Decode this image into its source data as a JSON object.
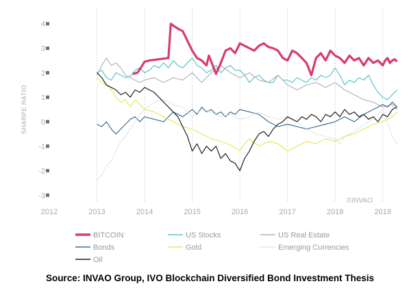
{
  "chart_data": {
    "type": "line",
    "ylabel": "SHARPE RATIO",
    "xlim": [
      2012,
      2019.35
    ],
    "ylim": [
      -3.3,
      4.3
    ],
    "x_ticks": [
      "2012",
      "2013",
      "2014",
      "2015",
      "2016",
      "2017",
      "2018",
      "2019"
    ],
    "y_ticks": [
      "4",
      "3",
      "2",
      "1",
      "0",
      "-1",
      "-2",
      "-3"
    ],
    "grid": "vertical dotted at years",
    "legend_position": "bottom",
    "watermark": "©INVAO",
    "series": [
      {
        "name": "BITCOIN",
        "color": "#d63c6e",
        "style": "solid-thick",
        "x": [
          2013.75,
          2013.85,
          2013.92,
          2014.0,
          2014.1,
          2014.3,
          2014.5,
          2014.55,
          2014.62,
          2014.7,
          2014.8,
          2014.9,
          2015.0,
          2015.1,
          2015.2,
          2015.3,
          2015.35,
          2015.45,
          2015.5,
          2015.6,
          2015.7,
          2015.8,
          2015.9,
          2016.0,
          2016.1,
          2016.2,
          2016.3,
          2016.4,
          2016.5,
          2016.6,
          2016.7,
          2016.8,
          2016.9,
          2017.0,
          2017.1,
          2017.2,
          2017.3,
          2017.4,
          2017.5,
          2017.6,
          2017.7,
          2017.8,
          2017.9,
          2018.0,
          2018.1,
          2018.2,
          2018.3,
          2018.4,
          2018.5,
          2018.6,
          2018.7,
          2018.8,
          2018.9,
          2019.0,
          2019.05,
          2019.1,
          2019.15,
          2019.2,
          2019.25,
          2019.3
        ],
        "y": [
          1.95,
          2.0,
          2.2,
          2.45,
          2.5,
          2.55,
          2.6,
          4.0,
          3.9,
          3.8,
          3.7,
          3.3,
          2.9,
          2.6,
          2.5,
          2.3,
          2.7,
          2.2,
          1.95,
          2.4,
          2.9,
          3.0,
          2.8,
          3.2,
          3.1,
          3.0,
          2.9,
          3.1,
          3.2,
          3.05,
          3.0,
          2.9,
          2.6,
          2.5,
          2.9,
          2.8,
          2.6,
          2.4,
          1.9,
          2.6,
          2.8,
          2.5,
          2.9,
          2.7,
          2.6,
          2.4,
          2.7,
          2.5,
          2.6,
          2.3,
          2.6,
          2.4,
          2.5,
          2.3,
          2.5,
          2.6,
          2.4,
          2.5,
          2.55,
          2.45
        ]
      },
      {
        "name": "US Stocks",
        "color": "#5bc0d0",
        "style": "solid",
        "x": [
          2013.0,
          2013.1,
          2013.2,
          2013.3,
          2013.4,
          2013.5,
          2013.6,
          2013.7,
          2013.8,
          2013.9,
          2014.0,
          2014.1,
          2014.2,
          2014.3,
          2014.4,
          2014.5,
          2014.6,
          2014.7,
          2014.8,
          2014.9,
          2015.0,
          2015.1,
          2015.2,
          2015.3,
          2015.4,
          2015.5,
          2015.6,
          2015.7,
          2015.8,
          2015.9,
          2016.0,
          2016.1,
          2016.2,
          2016.3,
          2016.4,
          2016.5,
          2016.6,
          2016.7,
          2016.8,
          2016.9,
          2017.0,
          2017.1,
          2017.2,
          2017.3,
          2017.4,
          2017.5,
          2017.6,
          2017.7,
          2017.8,
          2017.9,
          2018.0,
          2018.1,
          2018.2,
          2018.3,
          2018.4,
          2018.5,
          2018.6,
          2018.7,
          2018.8,
          2018.9,
          2019.0,
          2019.1,
          2019.2,
          2019.3
        ],
        "y": [
          2.0,
          2.1,
          1.8,
          1.7,
          2.0,
          1.9,
          1.8,
          1.85,
          2.1,
          2.2,
          2.0,
          2.1,
          2.3,
          2.2,
          2.4,
          2.2,
          2.5,
          2.3,
          2.2,
          2.4,
          2.6,
          2.3,
          2.2,
          2.0,
          2.1,
          2.3,
          2.0,
          2.2,
          2.3,
          2.1,
          2.1,
          1.9,
          1.6,
          1.8,
          1.9,
          1.7,
          1.6,
          1.6,
          1.9,
          1.7,
          1.7,
          1.6,
          1.8,
          1.7,
          1.6,
          1.8,
          1.7,
          1.9,
          1.8,
          1.9,
          2.2,
          1.9,
          1.5,
          1.7,
          1.6,
          1.8,
          1.7,
          1.9,
          1.5,
          1.2,
          1.0,
          0.9,
          1.1,
          1.3
        ]
      },
      {
        "name": "US Real Estate",
        "color": "#b3b3b3",
        "style": "solid",
        "x": [
          2013.0,
          2013.1,
          2013.2,
          2013.3,
          2013.4,
          2013.5,
          2013.6,
          2013.7,
          2013.8,
          2013.9,
          2014.0,
          2014.2,
          2014.4,
          2014.6,
          2014.8,
          2015.0,
          2015.2,
          2015.4,
          2015.6,
          2015.8,
          2016.0,
          2016.2,
          2016.4,
          2016.6,
          2016.8,
          2017.0,
          2017.2,
          2017.4,
          2017.6,
          2017.8,
          2018.0,
          2018.2,
          2018.4,
          2018.6,
          2018.8,
          2019.0,
          2019.2,
          2019.3
        ],
        "y": [
          1.9,
          2.3,
          2.6,
          2.3,
          2.4,
          2.2,
          1.9,
          1.8,
          1.7,
          1.6,
          1.7,
          1.8,
          1.6,
          1.8,
          1.7,
          2.0,
          1.6,
          2.0,
          2.3,
          2.0,
          1.8,
          2.0,
          1.7,
          1.6,
          1.9,
          1.5,
          1.3,
          1.5,
          1.6,
          1.4,
          1.6,
          1.3,
          1.1,
          0.9,
          0.8,
          0.6,
          0.7,
          0.5
        ]
      },
      {
        "name": "Bonds",
        "color": "#3c6e96",
        "style": "solid",
        "x": [
          2013.0,
          2013.1,
          2013.2,
          2013.3,
          2013.4,
          2013.5,
          2013.6,
          2013.7,
          2013.8,
          2013.9,
          2014.0,
          2014.2,
          2014.4,
          2014.6,
          2014.8,
          2015.0,
          2015.1,
          2015.2,
          2015.3,
          2015.4,
          2015.5,
          2015.6,
          2015.7,
          2015.8,
          2015.9,
          2016.0,
          2016.2,
          2016.4,
          2016.6,
          2016.8,
          2017.0,
          2017.2,
          2017.4,
          2017.6,
          2017.8,
          2018.0,
          2018.2,
          2018.4,
          2018.6,
          2018.8,
          2019.0,
          2019.1,
          2019.2,
          2019.3
        ],
        "y": [
          -0.1,
          -0.2,
          0.0,
          -0.3,
          -0.5,
          -0.3,
          -0.1,
          0.1,
          0.2,
          0.0,
          0.2,
          0.1,
          0.0,
          0.4,
          0.2,
          0.5,
          0.3,
          0.6,
          0.4,
          0.5,
          0.3,
          0.4,
          0.2,
          0.4,
          0.3,
          0.5,
          0.4,
          0.3,
          0.0,
          -0.2,
          -0.1,
          -0.2,
          -0.3,
          -0.2,
          -0.1,
          0.0,
          0.2,
          0.0,
          0.3,
          0.5,
          0.7,
          0.6,
          0.8,
          0.6
        ]
      },
      {
        "name": "Gold",
        "color": "#e3ec55",
        "style": "solid",
        "x": [
          2013.0,
          2013.1,
          2013.2,
          2013.3,
          2013.4,
          2013.5,
          2013.6,
          2013.7,
          2013.8,
          2013.9,
          2014.0,
          2014.2,
          2014.4,
          2014.6,
          2014.8,
          2015.0,
          2015.2,
          2015.4,
          2015.6,
          2015.8,
          2016.0,
          2016.1,
          2016.2,
          2016.4,
          2016.6,
          2016.8,
          2017.0,
          2017.2,
          2017.4,
          2017.6,
          2017.8,
          2018.0,
          2018.2,
          2018.4,
          2018.6,
          2018.8,
          2019.0,
          2019.2,
          2019.3
        ],
        "y": [
          1.8,
          1.6,
          1.5,
          1.3,
          1.0,
          0.8,
          0.9,
          0.6,
          0.9,
          0.7,
          0.5,
          0.4,
          0.2,
          0.0,
          -0.2,
          -0.3,
          -0.5,
          -0.7,
          -0.8,
          -0.95,
          -1.2,
          -0.9,
          -0.7,
          -1.0,
          -0.8,
          -0.9,
          -1.2,
          -1.0,
          -0.8,
          -0.9,
          -0.7,
          -0.8,
          -0.6,
          -0.5,
          -0.3,
          -0.1,
          0.0,
          0.2,
          0.4
        ]
      },
      {
        "name": "Emerging Currencies",
        "color": "#cfcfcf",
        "style": "dotted",
        "x": [
          2013.0,
          2013.1,
          2013.2,
          2013.3,
          2013.4,
          2013.5,
          2013.6,
          2013.7,
          2013.8,
          2013.9,
          2014.0,
          2014.2,
          2014.4,
          2014.6,
          2014.8,
          2015.0,
          2015.2,
          2015.4,
          2015.6,
          2015.8,
          2016.0,
          2016.2,
          2016.4,
          2016.6,
          2016.8,
          2017.0,
          2017.2,
          2017.4,
          2017.6,
          2017.8,
          2018.0,
          2018.1,
          2018.2,
          2018.4,
          2018.6,
          2018.8,
          2019.0,
          2019.2,
          2019.3
        ],
        "y": [
          -2.4,
          -2.2,
          -1.8,
          -1.6,
          -1.2,
          -0.8,
          -0.6,
          -0.3,
          0.0,
          0.3,
          0.5,
          0.8,
          0.9,
          0.7,
          0.6,
          0.2,
          0.5,
          0.4,
          0.2,
          0.3,
          0.1,
          0.2,
          0.4,
          0.2,
          0.1,
          0.2,
          0.0,
          -0.3,
          -0.5,
          -0.6,
          -0.7,
          -0.9,
          -0.6,
          -0.4,
          -0.1,
          0.1,
          0.5,
          -0.6,
          -0.9
        ]
      },
      {
        "name": "Oil",
        "color": "#1e1e1e",
        "style": "solid",
        "x": [
          2013.0,
          2013.1,
          2013.2,
          2013.3,
          2013.4,
          2013.5,
          2013.6,
          2013.7,
          2013.8,
          2013.9,
          2014.0,
          2014.1,
          2014.2,
          2014.3,
          2014.4,
          2014.5,
          2014.6,
          2014.7,
          2014.8,
          2014.9,
          2015.0,
          2015.1,
          2015.2,
          2015.3,
          2015.4,
          2015.5,
          2015.6,
          2015.7,
          2015.8,
          2015.9,
          2016.0,
          2016.1,
          2016.2,
          2016.3,
          2016.4,
          2016.5,
          2016.6,
          2016.7,
          2016.8,
          2016.9,
          2017.0,
          2017.1,
          2017.2,
          2017.3,
          2017.4,
          2017.5,
          2017.6,
          2017.7,
          2017.8,
          2017.9,
          2018.0,
          2018.1,
          2018.2,
          2018.3,
          2018.4,
          2018.5,
          2018.6,
          2018.7,
          2018.8,
          2018.9,
          2019.0,
          2019.1,
          2019.2,
          2019.3
        ],
        "y": [
          2.0,
          1.8,
          1.5,
          1.4,
          1.3,
          1.1,
          1.2,
          1.0,
          1.3,
          1.2,
          1.4,
          1.3,
          1.2,
          1.0,
          0.8,
          0.6,
          0.4,
          0.2,
          -0.2,
          -0.6,
          -1.2,
          -0.9,
          -1.3,
          -1.0,
          -1.2,
          -1.0,
          -1.5,
          -1.3,
          -1.6,
          -1.7,
          -2.0,
          -1.5,
          -1.2,
          -0.8,
          -0.5,
          -0.4,
          -0.6,
          -0.3,
          -0.1,
          0.0,
          0.2,
          0.1,
          0.0,
          0.2,
          0.1,
          0.3,
          0.2,
          0.0,
          0.3,
          0.2,
          0.4,
          0.2,
          0.5,
          0.3,
          0.4,
          0.2,
          0.3,
          0.1,
          0.2,
          0.0,
          0.3,
          0.2,
          0.5,
          0.6
        ]
      }
    ]
  },
  "source_text": "Source: INVAO Group, IVO Blockchain Diversified Bond Investment Thesis"
}
